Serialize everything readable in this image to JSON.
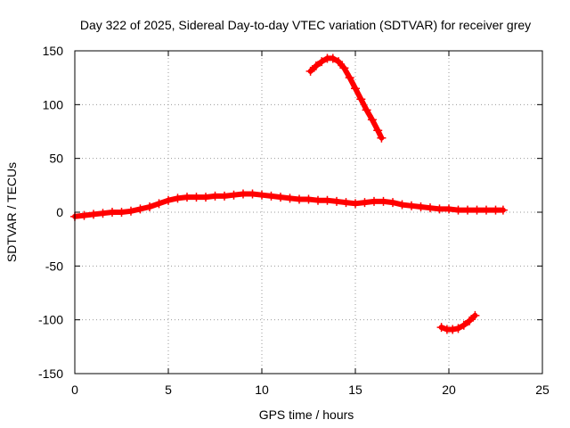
{
  "chart_data": {
    "type": "scatter",
    "title": "Day 322 of 2025, Sidereal Day-to-day VTEC variation (SDTVAR) for receiver grey",
    "xlabel": "GPS time / hours",
    "ylabel": "SDTVAR / TECUs",
    "xlim": [
      0,
      25
    ],
    "ylim": [
      -150,
      150
    ],
    "xticks": [
      0,
      5,
      10,
      15,
      20,
      25
    ],
    "yticks": [
      -150,
      -100,
      -50,
      0,
      50,
      100,
      150
    ],
    "xtick_labels": [
      "0",
      "5",
      "10",
      "15",
      "20",
      "25"
    ],
    "ytick_labels": [
      "-150",
      "-100",
      "-50",
      "0",
      "50",
      "100",
      "150"
    ],
    "grid": true,
    "marker": "+",
    "color": "#ff0000",
    "series": [
      {
        "name": "main-trace",
        "points": [
          [
            0.0,
            -4
          ],
          [
            0.5,
            -3
          ],
          [
            1.0,
            -2
          ],
          [
            1.5,
            -1
          ],
          [
            2.0,
            0
          ],
          [
            2.5,
            0
          ],
          [
            3.0,
            1
          ],
          [
            3.5,
            3
          ],
          [
            4.0,
            5
          ],
          [
            4.5,
            8
          ],
          [
            5.0,
            11
          ],
          [
            5.5,
            13
          ],
          [
            6.0,
            14
          ],
          [
            6.5,
            14
          ],
          [
            7.0,
            14
          ],
          [
            7.5,
            15
          ],
          [
            8.0,
            15
          ],
          [
            8.5,
            16
          ],
          [
            9.0,
            17
          ],
          [
            9.5,
            17
          ],
          [
            10.0,
            16
          ],
          [
            10.5,
            15
          ],
          [
            11.0,
            14
          ],
          [
            11.5,
            13
          ],
          [
            12.0,
            12
          ],
          [
            12.5,
            12
          ],
          [
            13.0,
            11
          ],
          [
            13.5,
            11
          ],
          [
            14.0,
            10
          ],
          [
            14.5,
            9
          ],
          [
            15.0,
            8
          ],
          [
            15.5,
            9
          ],
          [
            16.0,
            10
          ],
          [
            16.5,
            10
          ],
          [
            17.0,
            9
          ],
          [
            17.5,
            7
          ],
          [
            18.0,
            6
          ],
          [
            18.5,
            5
          ],
          [
            19.0,
            4
          ],
          [
            19.5,
            3
          ],
          [
            20.0,
            3
          ],
          [
            20.5,
            2
          ],
          [
            21.0,
            2
          ],
          [
            21.5,
            2
          ],
          [
            22.0,
            2
          ],
          [
            22.5,
            2
          ],
          [
            22.9,
            2
          ]
        ]
      },
      {
        "name": "upper-arc",
        "points": [
          [
            12.6,
            131
          ],
          [
            12.9,
            136
          ],
          [
            13.2,
            140
          ],
          [
            13.5,
            143
          ],
          [
            13.8,
            143
          ],
          [
            14.1,
            140
          ],
          [
            14.4,
            134
          ],
          [
            14.7,
            125
          ],
          [
            15.0,
            115
          ],
          [
            15.3,
            105
          ],
          [
            15.6,
            95
          ],
          [
            15.9,
            86
          ],
          [
            16.2,
            76
          ],
          [
            16.4,
            69
          ]
        ]
      },
      {
        "name": "lower-arc",
        "points": [
          [
            19.6,
            -107
          ],
          [
            19.9,
            -109
          ],
          [
            20.2,
            -109
          ],
          [
            20.5,
            -108
          ],
          [
            20.8,
            -105
          ],
          [
            21.1,
            -101
          ],
          [
            21.4,
            -96
          ]
        ]
      }
    ]
  }
}
